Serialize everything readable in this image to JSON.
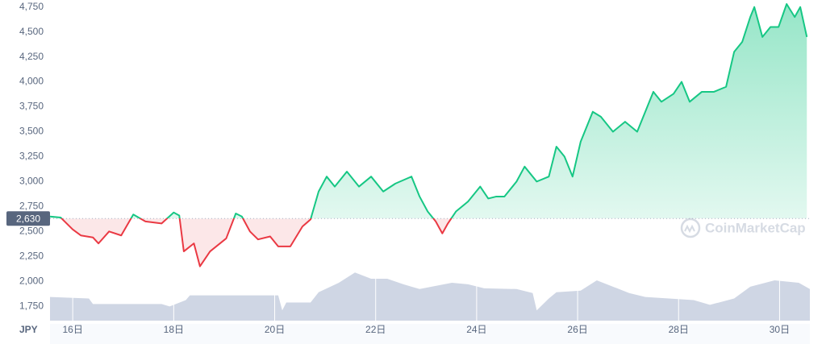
{
  "chart_data": {
    "type": "line",
    "x": [
      15.55,
      15.76,
      16.0,
      16.16,
      16.4,
      16.51,
      16.72,
      16.96,
      17.2,
      17.44,
      17.76,
      18.0,
      18.11,
      18.2,
      18.4,
      18.52,
      18.72,
      19.04,
      19.23,
      19.35,
      19.51,
      19.67,
      19.91,
      20.07,
      20.31,
      20.55,
      20.71,
      20.87,
      21.03,
      21.19,
      21.43,
      21.67,
      21.91,
      22.15,
      22.39,
      22.71,
      22.87,
      23.03,
      23.19,
      23.32,
      23.43,
      23.59,
      23.83,
      24.07,
      24.23,
      24.39,
      24.55,
      24.79,
      24.95,
      25.19,
      25.43,
      25.58,
      25.74,
      25.9,
      26.06,
      26.3,
      26.46,
      26.7,
      26.94,
      27.18,
      27.34,
      27.5,
      27.66,
      27.9,
      28.06,
      28.22,
      28.46,
      28.7,
      28.94,
      29.1,
      29.26,
      29.42,
      29.5,
      29.66,
      29.82,
      29.98,
      30.14,
      30.3,
      30.41,
      30.54
    ],
    "series": [
      {
        "name": "JPY",
        "values": [
          2650,
          2640,
          2520,
          2460,
          2440,
          2380,
          2500,
          2460,
          2670,
          2600,
          2580,
          2690,
          2660,
          2300,
          2380,
          2150,
          2300,
          2430,
          2680,
          2650,
          2500,
          2420,
          2450,
          2350,
          2350,
          2550,
          2620,
          2900,
          3050,
          2950,
          3100,
          2950,
          3050,
          2900,
          2980,
          3050,
          2850,
          2700,
          2600,
          2480,
          2580,
          2700,
          2800,
          2950,
          2830,
          2850,
          2850,
          3000,
          3150,
          3000,
          3050,
          3350,
          3250,
          3050,
          3400,
          3700,
          3650,
          3500,
          3600,
          3500,
          3700,
          3900,
          3800,
          3880,
          4000,
          3800,
          3900,
          3900,
          3950,
          4300,
          4400,
          4650,
          4750,
          4450,
          4550,
          4550,
          4780,
          4650,
          4750,
          4450
        ]
      }
    ],
    "up_color": "#16c784",
    "down_color": "#ea3943",
    "baseline": {
      "value": 2630,
      "label": "2,630"
    },
    "xlim": [
      15.55,
      30.6
    ],
    "xticks": [
      {
        "value": 16,
        "label": "16日"
      },
      {
        "value": 18,
        "label": "18日"
      },
      {
        "value": 20,
        "label": "20日"
      },
      {
        "value": 22,
        "label": "22日"
      },
      {
        "value": 24,
        "label": "24日"
      },
      {
        "value": 26,
        "label": "26日"
      },
      {
        "value": 28,
        "label": "28日"
      },
      {
        "value": 30,
        "label": "30日"
      }
    ],
    "ylim": [
      1630,
      4780
    ],
    "yticks": [
      {
        "value": 1750,
        "label": "1,750"
      },
      {
        "value": 2000,
        "label": "2,000"
      },
      {
        "value": 2250,
        "label": "2,250"
      },
      {
        "value": 2500,
        "label": "2,500"
      },
      {
        "value": 2750,
        "label": "2,750"
      },
      {
        "value": 3000,
        "label": "3,000"
      },
      {
        "value": 3250,
        "label": "3,250"
      },
      {
        "value": 3500,
        "label": "3,500"
      },
      {
        "value": 3750,
        "label": "3,750"
      },
      {
        "value": 4000,
        "label": "4,000"
      },
      {
        "value": 4250,
        "label": "4,250"
      },
      {
        "value": 4500,
        "label": "4,500"
      },
      {
        "value": 4750,
        "label": "4,750"
      }
    ],
    "grid": false,
    "currency_label": "JPY",
    "watermark": "CoinMarketCap",
    "volume": {
      "color": "#cfd6e4",
      "ylim": [
        0,
        100
      ],
      "x": [
        15.55,
        16.32,
        16.4,
        17.76,
        17.92,
        18.24,
        18.32,
        19.2,
        20.07,
        20.15,
        20.23,
        20.71,
        20.87,
        21.27,
        21.59,
        21.91,
        22.23,
        22.55,
        22.87,
        23.51,
        23.83,
        24.15,
        24.79,
        25.11,
        25.19,
        25.43,
        25.58,
        26.06,
        26.38,
        26.7,
        27.02,
        27.34,
        28.3,
        28.62,
        29.1,
        29.42,
        29.9,
        30.38,
        30.6
      ],
      "values": [
        30,
        28,
        21,
        21,
        18,
        26,
        32,
        32,
        32,
        13,
        23,
        23,
        36,
        48,
        61,
        53,
        53,
        46,
        40,
        48,
        46,
        41,
        40,
        35,
        13,
        28,
        36,
        38,
        51,
        43,
        35,
        30,
        26,
        20,
        28,
        43,
        51,
        48,
        40
      ]
    }
  }
}
